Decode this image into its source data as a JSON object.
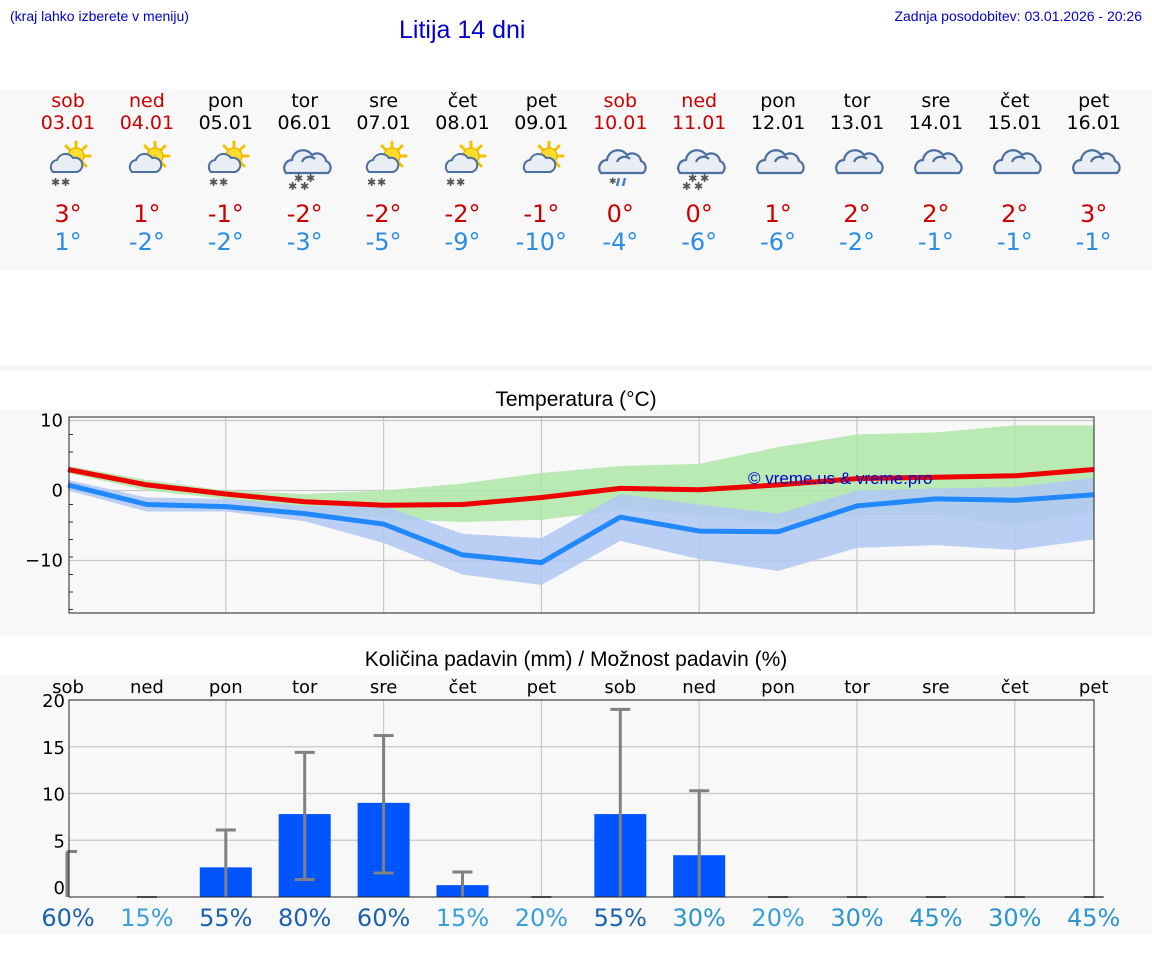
{
  "header": {
    "left_note": "(kraj lahko izberete v meniju)",
    "title": "Litija 14 dni",
    "updated": "Zadnja posodobitev: 03.01.2026 - 20:26"
  },
  "days": [
    {
      "name": "sob",
      "date": "03.01",
      "tmax": "3°",
      "tmin": "1°",
      "weekend": true,
      "icon": "sun-cloud-snow-icon"
    },
    {
      "name": "ned",
      "date": "04.01",
      "tmax": "1°",
      "tmin": "-2°",
      "weekend": true,
      "icon": "sun-cloud-icon"
    },
    {
      "name": "pon",
      "date": "05.01",
      "tmax": "-1°",
      "tmin": "-2°",
      "weekend": false,
      "icon": "sun-cloud-snow-icon"
    },
    {
      "name": "tor",
      "date": "06.01",
      "tmax": "-2°",
      "tmin": "-3°",
      "weekend": false,
      "icon": "cloud-snow-icon"
    },
    {
      "name": "sre",
      "date": "07.01",
      "tmax": "-2°",
      "tmin": "-5°",
      "weekend": false,
      "icon": "sun-cloud-snow-icon"
    },
    {
      "name": "čet",
      "date": "08.01",
      "tmax": "-2°",
      "tmin": "-9°",
      "weekend": false,
      "icon": "sun-cloud-snow-icon"
    },
    {
      "name": "pet",
      "date": "09.01",
      "tmax": "-1°",
      "tmin": "-10°",
      "weekend": false,
      "icon": "sun-cloud-icon"
    },
    {
      "name": "sob",
      "date": "10.01",
      "tmax": "0°",
      "tmin": "-4°",
      "weekend": true,
      "icon": "cloud-sleet-icon"
    },
    {
      "name": "ned",
      "date": "11.01",
      "tmax": "0°",
      "tmin": "-6°",
      "weekend": true,
      "icon": "cloud-snow-icon"
    },
    {
      "name": "pon",
      "date": "12.01",
      "tmax": "1°",
      "tmin": "-6°",
      "weekend": false,
      "icon": "cloud-icon"
    },
    {
      "name": "tor",
      "date": "13.01",
      "tmax": "2°",
      "tmin": "-2°",
      "weekend": false,
      "icon": "cloud-icon"
    },
    {
      "name": "sre",
      "date": "14.01",
      "tmax": "2°",
      "tmin": "-1°",
      "weekend": false,
      "icon": "cloud-icon"
    },
    {
      "name": "čet",
      "date": "15.01",
      "tmax": "2°",
      "tmin": "-1°",
      "weekend": false,
      "icon": "cloud-icon"
    },
    {
      "name": "pet",
      "date": "16.01",
      "tmax": "3°",
      "tmin": "-1°",
      "weekend": false,
      "icon": "cloud-icon"
    }
  ],
  "colors": {
    "tmax": "#ee0000",
    "tmin": "#2288ff",
    "band_max": "#aee8a8",
    "band_min": "#b0c8f4",
    "band_overlap": "#7ec4a8",
    "bar": "#0055ff",
    "whisker": "#808080",
    "title": "#0000cc"
  },
  "chart_data": [
    {
      "type": "line",
      "title": "Temperatura (°C)",
      "watermark": "© vreme.us & vreme.pro",
      "ylim": [
        -17.5,
        10.5
      ],
      "yticks": [
        10,
        0,
        -10
      ],
      "ytick_labels": [
        "10",
        "0",
        "−10"
      ],
      "x": [
        0,
        1,
        2,
        3,
        4,
        5,
        6,
        7,
        8,
        9,
        10,
        11,
        12,
        13
      ],
      "series": [
        {
          "name": "max",
          "values": [
            3,
            0.8,
            -0.5,
            -1.6,
            -2.1,
            -2.0,
            -1.0,
            0.3,
            0.1,
            0.8,
            1.7,
            1.9,
            2.1,
            3.0
          ],
          "band_low": [
            2.5,
            0,
            -1.2,
            -3,
            -4,
            -4.5,
            -4.2,
            -2.8,
            -3.5,
            -4.8,
            -3.5,
            -3.5,
            -5,
            -3
          ],
          "band_high": [
            3.5,
            1.5,
            0,
            -0.5,
            0,
            1,
            2.5,
            3.5,
            3.8,
            6.2,
            8,
            8.3,
            9.3,
            9.3
          ]
        },
        {
          "name": "min",
          "values": [
            0.8,
            -2.0,
            -2.3,
            -3.3,
            -4.8,
            -9.2,
            -10.3,
            -3.8,
            -5.8,
            -5.9,
            -2.2,
            -1.2,
            -1.4,
            -0.6
          ],
          "band_low": [
            0,
            -3,
            -3,
            -4.4,
            -7.5,
            -12,
            -13.5,
            -7.2,
            -9.8,
            -11.5,
            -8.2,
            -7.8,
            -8.5,
            -7
          ],
          "band_high": [
            1.5,
            -1,
            -1.2,
            -2.2,
            -2.2,
            -6.2,
            -6.8,
            -0.5,
            -2,
            -3.3,
            0,
            0.3,
            0.5,
            1.8
          ]
        }
      ]
    },
    {
      "type": "bar",
      "title": "Količina padavin (mm) / Možnost padavin (%)",
      "categories": [
        "sob",
        "ned",
        "pon",
        "tor",
        "sre",
        "čet",
        "pet",
        "sob",
        "ned",
        "pon",
        "tor",
        "sre",
        "čet",
        "pet"
      ],
      "ylim": [
        0,
        20
      ],
      "yticks": [
        0,
        5,
        10,
        15,
        20
      ],
      "values": [
        0,
        0,
        2.1,
        7.8,
        9.0,
        0.2,
        0,
        7.8,
        3.4,
        0,
        0,
        0,
        0,
        0
      ],
      "whisker_low": [
        0,
        0,
        0,
        0.8,
        1.5,
        0,
        0,
        0,
        0,
        0,
        0,
        0,
        0,
        0
      ],
      "whisker_high": [
        3.8,
        0,
        6.1,
        14.4,
        16.2,
        1.6,
        0,
        19.0,
        10.3,
        0,
        0,
        0,
        0,
        0
      ],
      "probability": [
        "60%",
        "15%",
        "55%",
        "80%",
        "60%",
        "15%",
        "20%",
        "55%",
        "30%",
        "20%",
        "30%",
        "45%",
        "30%",
        "45%"
      ],
      "probability_level": [
        3,
        1,
        3,
        3,
        3,
        1,
        1,
        3,
        2,
        1,
        2,
        2,
        2,
        2
      ]
    }
  ]
}
